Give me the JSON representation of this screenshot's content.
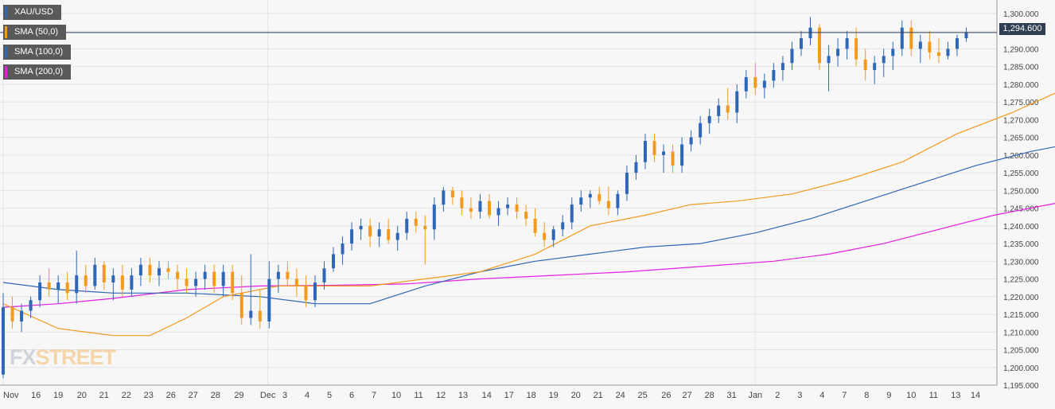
{
  "chart_data": {
    "type": "candlestick",
    "symbol": "XAU/USD",
    "current_price_label": "1,294.600",
    "current_price": 1294.6,
    "ylim": [
      1195,
      1302
    ],
    "y_ticks": [
      1195,
      1200,
      1205,
      1210,
      1215,
      1220,
      1225,
      1230,
      1235,
      1240,
      1245,
      1250,
      1255,
      1260,
      1265,
      1270,
      1275,
      1280,
      1285,
      1290,
      1295,
      1300
    ],
    "y_tick_labels": [
      "1,195.000",
      "1,200.000",
      "1,205.000",
      "1,210.000",
      "1,215.000",
      "1,220.000",
      "1,225.000",
      "1,230.000",
      "1,235.000",
      "1,240.000",
      "1,245.000",
      "1,250.000",
      "1,255.000",
      "1,260.000",
      "1,265.000",
      "1,270.000",
      "1,275.000",
      "1,280.000",
      "1,285.000",
      "1,290.000",
      "1,295.000",
      "1,300.000"
    ],
    "x_tick_labels": [
      "Nov",
      "16",
      "19",
      "20",
      "21",
      "22",
      "23",
      "26",
      "27",
      "28",
      "29",
      "Dec",
      "3",
      "4",
      "5",
      "6",
      "7",
      "10",
      "11",
      "12",
      "13",
      "14",
      "17",
      "18",
      "19",
      "20",
      "21",
      "24",
      "25",
      "26",
      "27",
      "28",
      "31",
      "Jan",
      "2",
      "3",
      "4",
      "7",
      "8",
      "9",
      "10",
      "11",
      "13",
      "14"
    ],
    "x_tick_index": [
      0,
      25,
      42,
      60,
      77,
      94,
      111,
      128,
      145,
      162,
      180,
      202,
      215,
      232,
      249,
      266,
      283,
      300,
      317,
      334,
      351,
      369,
      386,
      403,
      420,
      437,
      454,
      471,
      488,
      506,
      522,
      539,
      556,
      574,
      591,
      608,
      625,
      642,
      659,
      676,
      693,
      710,
      727,
      742
    ],
    "grid": true,
    "series": [
      {
        "name": "SMA (50,0)",
        "color": "#f39a1d"
      },
      {
        "name": "SMA (100,0)",
        "color": "#2f67b8"
      },
      {
        "name": "SMA (200,0)",
        "color": "#e31fe3"
      }
    ],
    "sma50": [
      [
        0,
        1218
      ],
      [
        30,
        1211
      ],
      [
        60,
        1209
      ],
      [
        80,
        1209
      ],
      [
        100,
        1214
      ],
      [
        120,
        1220
      ],
      [
        150,
        1223
      ],
      [
        180,
        1223
      ],
      [
        200,
        1223
      ],
      [
        230,
        1225
      ],
      [
        260,
        1227
      ],
      [
        290,
        1232
      ],
      [
        320,
        1240
      ],
      [
        350,
        1243
      ],
      [
        375,
        1246
      ],
      [
        400,
        1247
      ],
      [
        430,
        1249
      ],
      [
        460,
        1253
      ],
      [
        490,
        1258
      ],
      [
        520,
        1266
      ],
      [
        550,
        1272
      ],
      [
        580,
        1279
      ],
      [
        610,
        1284
      ],
      [
        640,
        1286
      ],
      [
        670,
        1287
      ],
      [
        700,
        1287.5
      ],
      [
        725,
        1288
      ],
      [
        750,
        1289
      ]
    ],
    "sma100": [
      [
        0,
        1224
      ],
      [
        30,
        1222
      ],
      [
        60,
        1221
      ],
      [
        100,
        1221
      ],
      [
        140,
        1220
      ],
      [
        170,
        1218
      ],
      [
        200,
        1218
      ],
      [
        230,
        1223
      ],
      [
        260,
        1227
      ],
      [
        290,
        1230
      ],
      [
        320,
        1232
      ],
      [
        350,
        1234
      ],
      [
        380,
        1235
      ],
      [
        410,
        1238
      ],
      [
        440,
        1242
      ],
      [
        470,
        1247
      ],
      [
        500,
        1252
      ],
      [
        530,
        1257
      ],
      [
        560,
        1261
      ],
      [
        590,
        1264
      ],
      [
        620,
        1268
      ],
      [
        650,
        1271
      ],
      [
        680,
        1274
      ],
      [
        710,
        1277
      ],
      [
        730,
        1278.5
      ],
      [
        750,
        1280
      ]
    ],
    "sma200": [
      [
        0,
        1217
      ],
      [
        30,
        1218
      ],
      [
        60,
        1219.5
      ],
      [
        100,
        1222
      ],
      [
        140,
        1223
      ],
      [
        180,
        1223.2
      ],
      [
        220,
        1223.6
      ],
      [
        260,
        1225
      ],
      [
        300,
        1226
      ],
      [
        340,
        1227
      ],
      [
        380,
        1228.5
      ],
      [
        420,
        1230
      ],
      [
        450,
        1232
      ],
      [
        480,
        1235
      ],
      [
        510,
        1239
      ],
      [
        540,
        1243
      ],
      [
        570,
        1246
      ],
      [
        600,
        1249
      ],
      [
        630,
        1251
      ],
      [
        660,
        1253
      ],
      [
        690,
        1255
      ],
      [
        720,
        1257
      ],
      [
        750,
        1259
      ]
    ],
    "candles": [
      [
        0,
        1198,
        1221,
        1197,
        1217
      ],
      [
        5,
        1217,
        1220,
        1211,
        1213
      ],
      [
        10,
        1213,
        1218,
        1210,
        1216
      ],
      [
        15,
        1216,
        1220,
        1214,
        1219
      ],
      [
        20,
        1219,
        1226,
        1217,
        1224
      ],
      [
        25,
        1224,
        1228,
        1220,
        1222
      ],
      [
        30,
        1222,
        1226,
        1218,
        1224
      ],
      [
        35,
        1224,
        1227,
        1219,
        1221
      ],
      [
        40,
        1221,
        1233,
        1218,
        1226
      ],
      [
        45,
        1226,
        1229,
        1221,
        1223
      ],
      [
        50,
        1223,
        1231,
        1222,
        1229
      ],
      [
        55,
        1229,
        1230,
        1222,
        1224
      ],
      [
        60,
        1224,
        1228,
        1219,
        1226
      ],
      [
        65,
        1226,
        1229,
        1220,
        1222
      ],
      [
        70,
        1222,
        1228,
        1220,
        1226
      ],
      [
        75,
        1226,
        1231,
        1223,
        1229
      ],
      [
        80,
        1229,
        1231,
        1224,
        1226
      ],
      [
        85,
        1226,
        1230,
        1223,
        1228
      ],
      [
        90,
        1228,
        1230,
        1225,
        1227
      ],
      [
        95,
        1227,
        1229,
        1222,
        1225
      ],
      [
        100,
        1225,
        1228,
        1221,
        1223
      ],
      [
        105,
        1223,
        1227,
        1220,
        1225
      ],
      [
        110,
        1225,
        1229,
        1222,
        1227
      ],
      [
        115,
        1227,
        1229,
        1221,
        1223
      ],
      [
        120,
        1223,
        1229,
        1220,
        1227
      ],
      [
        125,
        1227,
        1229,
        1219,
        1221
      ],
      [
        130,
        1221,
        1226,
        1212,
        1214
      ],
      [
        135,
        1214,
        1232,
        1212,
        1216
      ],
      [
        140,
        1216,
        1222,
        1211,
        1213
      ],
      [
        145,
        1213,
        1230,
        1211,
        1225
      ],
      [
        150,
        1225,
        1229,
        1221,
        1227
      ],
      [
        155,
        1227,
        1230,
        1223,
        1225
      ],
      [
        160,
        1225,
        1228,
        1220,
        1223
      ],
      [
        165,
        1223,
        1226,
        1217,
        1219
      ],
      [
        170,
        1219,
        1226,
        1217,
        1224
      ],
      [
        175,
        1224,
        1230,
        1222,
        1228
      ],
      [
        180,
        1228,
        1234,
        1227,
        1232
      ],
      [
        185,
        1232,
        1237,
        1229,
        1235
      ],
      [
        190,
        1235,
        1241,
        1233,
        1239
      ],
      [
        195,
        1239,
        1242,
        1236,
        1240
      ],
      [
        200,
        1240,
        1242,
        1234,
        1237
      ],
      [
        205,
        1237,
        1241,
        1234,
        1239
      ],
      [
        210,
        1239,
        1242,
        1235,
        1236
      ],
      [
        215,
        1236,
        1240,
        1233,
        1238
      ],
      [
        220,
        1238,
        1244,
        1236,
        1242
      ],
      [
        225,
        1242,
        1244,
        1238,
        1240
      ],
      [
        230,
        1240,
        1243,
        1229,
        1239
      ],
      [
        235,
        1239,
        1248,
        1236,
        1246
      ],
      [
        240,
        1246,
        1251,
        1244,
        1250
      ],
      [
        245,
        1250,
        1251,
        1246,
        1248
      ],
      [
        250,
        1248,
        1250,
        1243,
        1245
      ],
      [
        255,
        1245,
        1248,
        1242,
        1244
      ],
      [
        260,
        1244,
        1249,
        1242,
        1247
      ],
      [
        265,
        1247,
        1249,
        1242,
        1243
      ],
      [
        270,
        1243,
        1247,
        1240,
        1245
      ],
      [
        275,
        1245,
        1248,
        1243,
        1246
      ],
      [
        280,
        1246,
        1248,
        1242,
        1244
      ],
      [
        285,
        1244,
        1246,
        1240,
        1242
      ],
      [
        290,
        1242,
        1245,
        1237,
        1238
      ],
      [
        295,
        1238,
        1241,
        1234,
        1236
      ],
      [
        300,
        1236,
        1240,
        1234,
        1239
      ],
      [
        305,
        1239,
        1243,
        1237,
        1241
      ],
      [
        310,
        1241,
        1248,
        1239,
        1246
      ],
      [
        315,
        1246,
        1250,
        1244,
        1248
      ],
      [
        320,
        1248,
        1250,
        1245,
        1249
      ],
      [
        325,
        1249,
        1251,
        1246,
        1247
      ],
      [
        330,
        1247,
        1251,
        1243,
        1245
      ],
      [
        335,
        1245,
        1250,
        1243,
        1249
      ],
      [
        340,
        1249,
        1257,
        1247,
        1255
      ],
      [
        345,
        1255,
        1260,
        1253,
        1258
      ],
      [
        350,
        1258,
        1266,
        1256,
        1264
      ],
      [
        355,
        1264,
        1266,
        1258,
        1260
      ],
      [
        360,
        1260,
        1263,
        1255,
        1261
      ],
      [
        365,
        1261,
        1263,
        1255,
        1257
      ],
      [
        370,
        1257,
        1265,
        1255,
        1263
      ],
      [
        375,
        1263,
        1267,
        1261,
        1265
      ],
      [
        380,
        1265,
        1271,
        1263,
        1269
      ],
      [
        385,
        1269,
        1273,
        1266,
        1271
      ],
      [
        390,
        1271,
        1276,
        1269,
        1274
      ],
      [
        395,
        1274,
        1279,
        1270,
        1272
      ],
      [
        400,
        1272,
        1280,
        1269,
        1278
      ],
      [
        405,
        1278,
        1284,
        1276,
        1282
      ],
      [
        410,
        1282,
        1286,
        1277,
        1279
      ],
      [
        415,
        1279,
        1283,
        1276,
        1281
      ],
      [
        420,
        1281,
        1286,
        1279,
        1284
      ],
      [
        425,
        1284,
        1288,
        1281,
        1286
      ],
      [
        430,
        1286,
        1292,
        1284,
        1290
      ],
      [
        435,
        1290,
        1295,
        1288,
        1293
      ],
      [
        440,
        1293,
        1299,
        1291,
        1296
      ],
      [
        445,
        1296,
        1297,
        1284,
        1286
      ],
      [
        450,
        1286,
        1291,
        1278,
        1288
      ],
      [
        455,
        1288,
        1293,
        1285,
        1290
      ],
      [
        460,
        1290,
        1295,
        1287,
        1293
      ],
      [
        465,
        1293,
        1296,
        1285,
        1287
      ],
      [
        470,
        1287,
        1290,
        1281,
        1284
      ],
      [
        475,
        1284,
        1288,
        1280,
        1286
      ],
      [
        480,
        1286,
        1290,
        1282,
        1288
      ],
      [
        485,
        1288,
        1292,
        1284,
        1290
      ],
      [
        490,
        1290,
        1298,
        1288,
        1296
      ],
      [
        495,
        1296,
        1298,
        1288,
        1290
      ],
      [
        500,
        1290,
        1294,
        1286,
        1292
      ],
      [
        505,
        1292,
        1295,
        1287,
        1289
      ],
      [
        510,
        1289,
        1293,
        1286,
        1288
      ],
      [
        515,
        1288,
        1292,
        1287,
        1290
      ],
      [
        520,
        1290,
        1294,
        1288,
        1293
      ],
      [
        525,
        1293,
        1296,
        1292,
        1294.6
      ]
    ],
    "x_max": 530
  },
  "legend": [
    {
      "label": "XAU/USD",
      "color": "#2f67b8"
    },
    {
      "label": "SMA (50,0)",
      "color": "#f39a1d"
    },
    {
      "label": "SMA (100,0)",
      "color": "#2f67b8"
    },
    {
      "label": "SMA (200,0)",
      "color": "#e31fe3"
    }
  ],
  "colors": {
    "bull": "#2f67b8",
    "bear": "#f39a1d",
    "grid": "#e4e4e4",
    "axis_text": "#444444",
    "price_line": "#2f3e52"
  },
  "watermark": {
    "part1": "FX",
    "part2": "STREET"
  }
}
